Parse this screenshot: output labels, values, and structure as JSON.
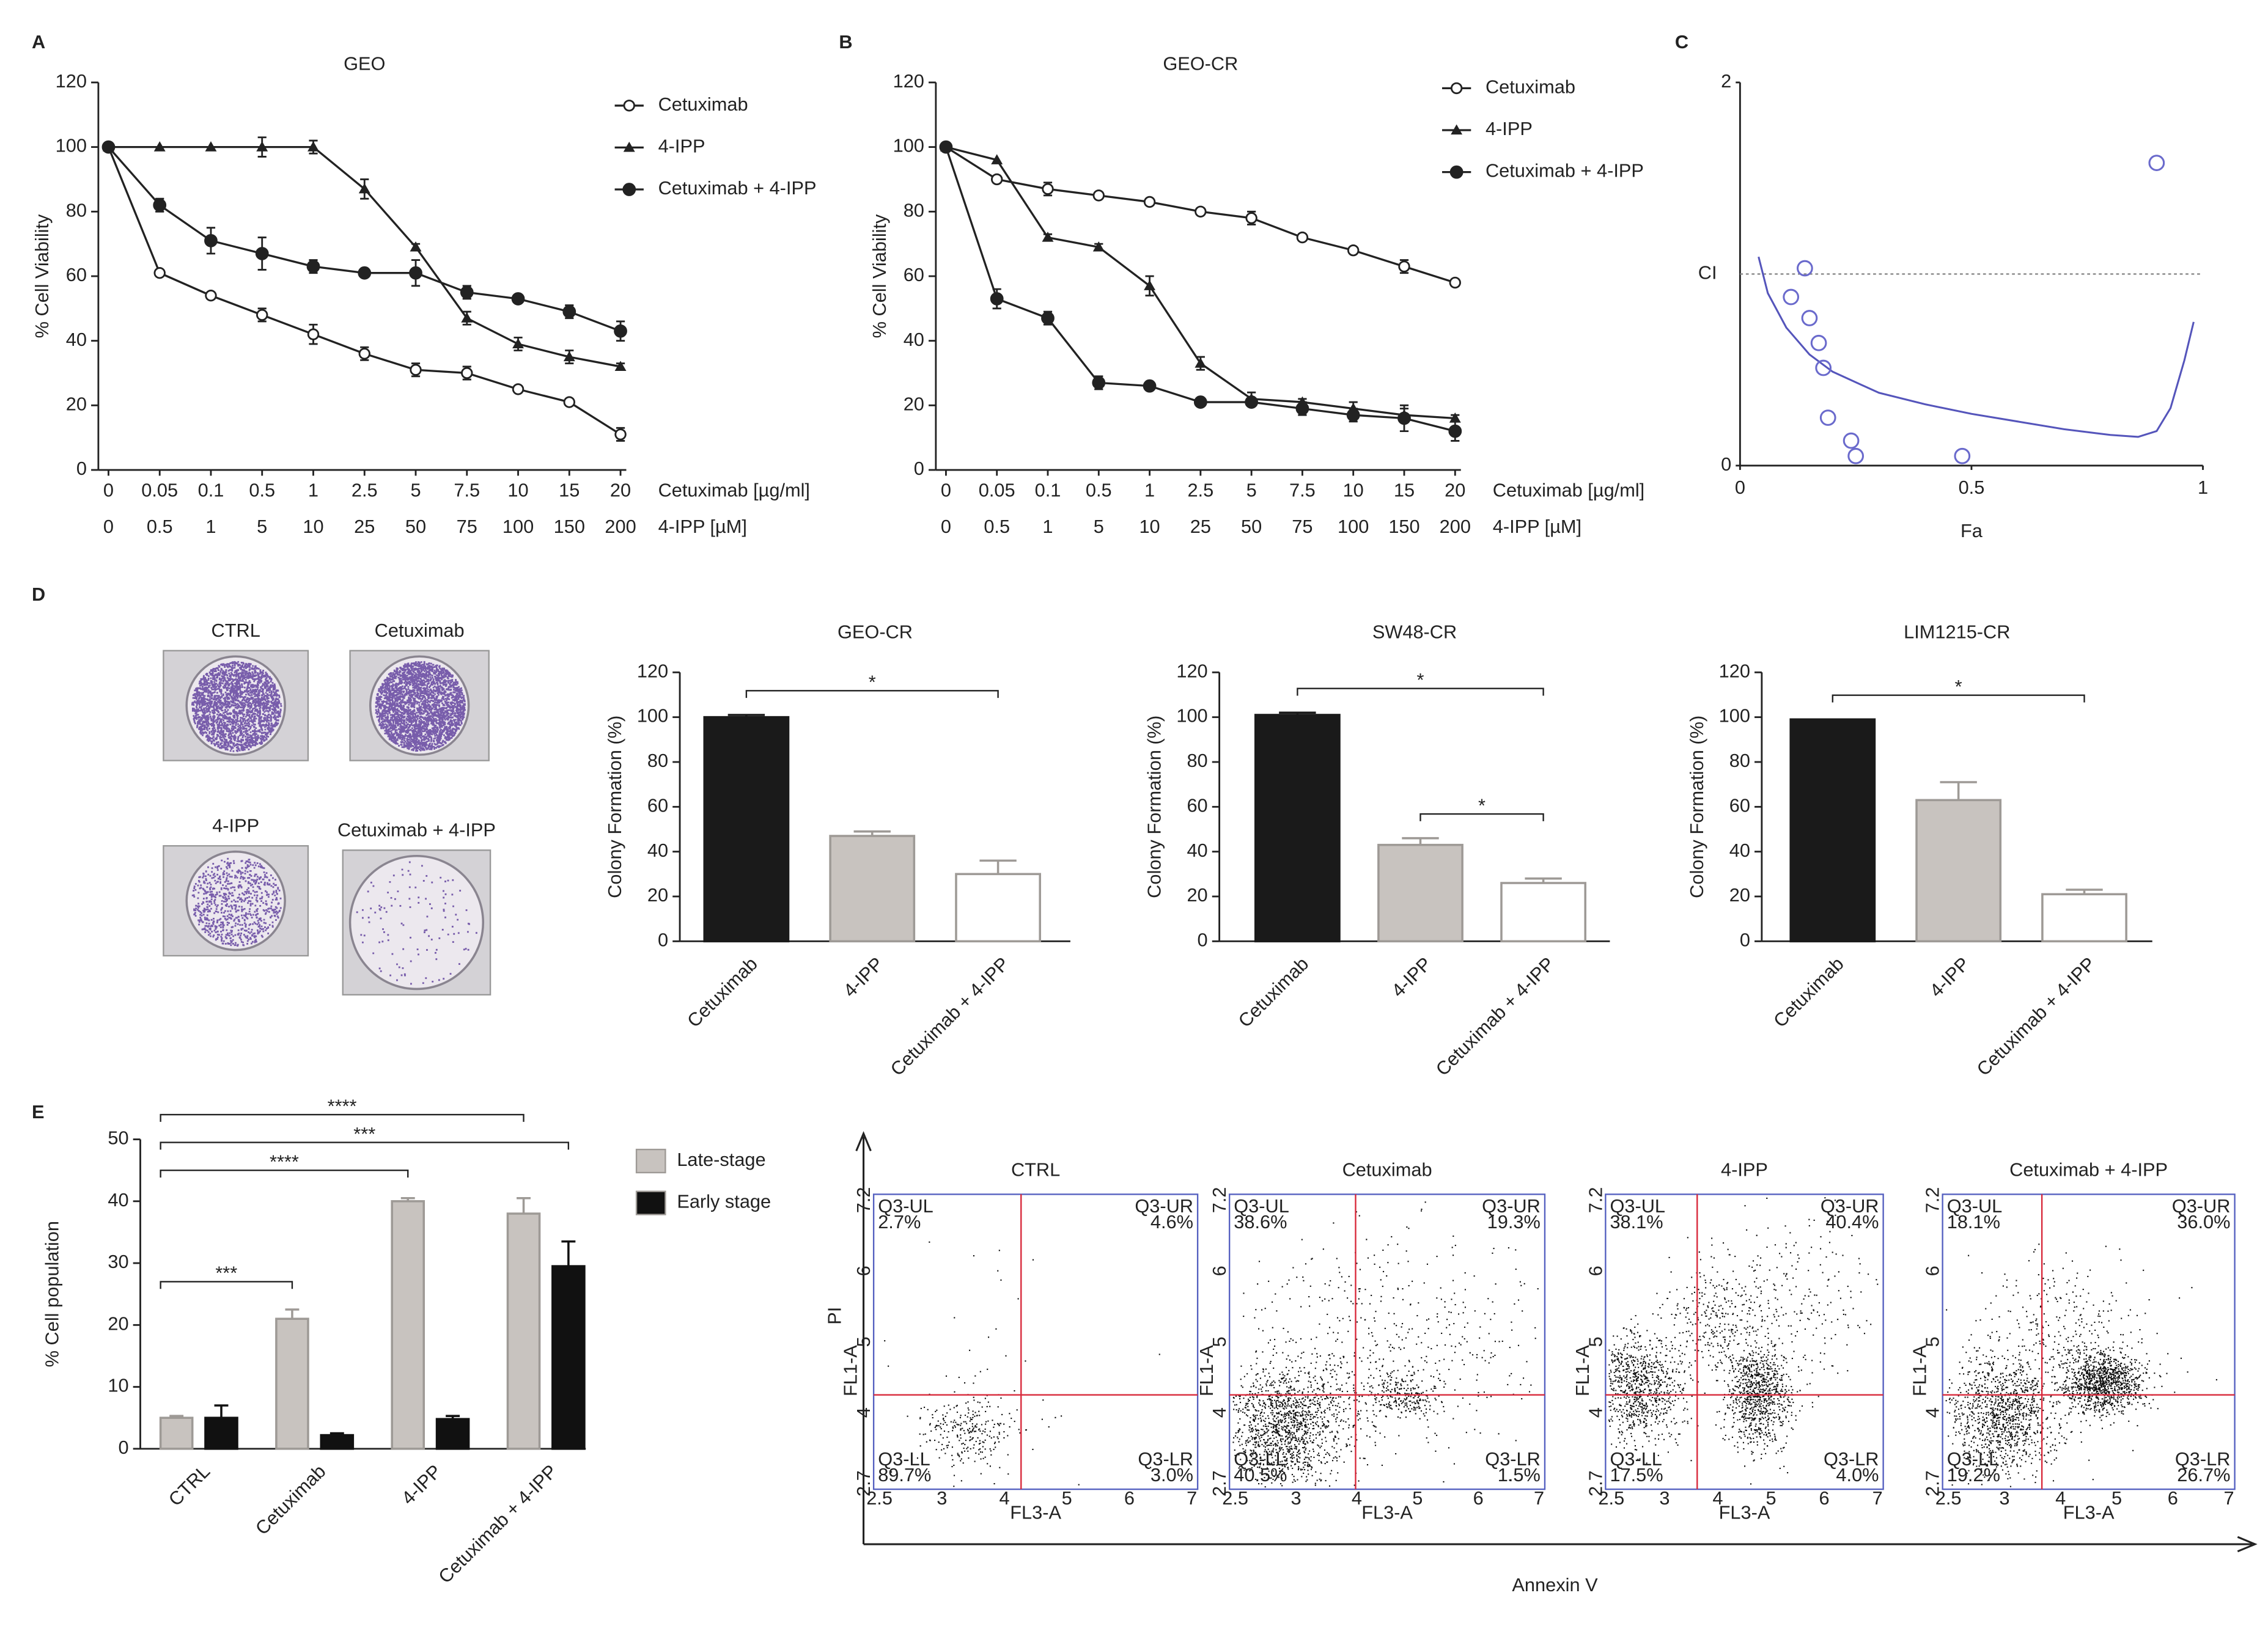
{
  "panel_labels": [
    "A",
    "B",
    "C",
    "D",
    "E"
  ],
  "chart_data": [
    {
      "type": "line",
      "title": "GEO",
      "categories": [
        "0",
        "0.05",
        "0.1",
        "0.5",
        "1",
        "2.5",
        "5",
        "7.5",
        "10",
        "15",
        "20"
      ],
      "categories2": [
        "0",
        "0.5",
        "1",
        "5",
        "10",
        "25",
        "50",
        "75",
        "100",
        "150",
        "200"
      ],
      "xlabel": "Cetuximab [µg/ml]",
      "xlabel2": "4-IPP [µM]",
      "ylabel": "% Cell Viability",
      "ylim": [
        0,
        120
      ],
      "yticks": [
        0,
        20,
        40,
        60,
        80,
        100,
        120
      ],
      "legend": "upper right",
      "series": [
        {
          "name": "Cetuximab",
          "color": "#222",
          "marker": "open-circle",
          "values": [
            100,
            61,
            54,
            48,
            42,
            36,
            31,
            30,
            25,
            21,
            11
          ],
          "errors": [
            0,
            1,
            1,
            2,
            3,
            2,
            2,
            2,
            1,
            1,
            2
          ]
        },
        {
          "name": "4-IPP",
          "color": "#222",
          "marker": "triangle",
          "values": [
            100,
            100,
            100,
            100,
            100,
            87,
            69,
            47,
            39,
            35,
            32
          ],
          "errors": [
            0,
            0,
            0,
            3,
            2,
            3,
            1,
            2,
            2,
            2,
            1
          ]
        },
        {
          "name": "Cetuximab + 4-IPP",
          "color": "#222",
          "marker": "circle",
          "values": [
            100,
            82,
            71,
            67,
            63,
            61,
            61,
            55,
            53,
            49,
            43
          ],
          "errors": [
            0,
            2,
            4,
            5,
            2,
            1,
            4,
            2,
            1,
            2,
            3
          ]
        }
      ]
    },
    {
      "type": "line",
      "title": "GEO-CR",
      "categories": [
        "0",
        "0.05",
        "0.1",
        "0.5",
        "1",
        "2.5",
        "5",
        "7.5",
        "10",
        "15",
        "20"
      ],
      "categories2": [
        "0",
        "0.5",
        "1",
        "5",
        "10",
        "25",
        "50",
        "75",
        "100",
        "150",
        "200"
      ],
      "xlabel": "Cetuximab [µg/ml]",
      "xlabel2": "4-IPP [µM]",
      "ylabel": "% Cell Viability",
      "ylim": [
        0,
        120
      ],
      "yticks": [
        0,
        20,
        40,
        60,
        80,
        100,
        120
      ],
      "legend": "upper right",
      "series": [
        {
          "name": "Cetuximab",
          "color": "#222",
          "marker": "open-circle",
          "values": [
            100,
            90,
            87,
            85,
            83,
            80,
            78,
            72,
            68,
            63,
            58
          ],
          "errors": [
            0,
            1,
            2,
            1,
            1,
            1,
            2,
            1,
            1,
            2,
            1
          ]
        },
        {
          "name": "4-IPP",
          "color": "#222",
          "marker": "triangle",
          "values": [
            100,
            96,
            72,
            69,
            57,
            33,
            22,
            21,
            19,
            17,
            16
          ],
          "errors": [
            0,
            0,
            1,
            1,
            3,
            2,
            2,
            1,
            2,
            2,
            1
          ]
        },
        {
          "name": "Cetuximab + 4-IPP",
          "color": "#222",
          "marker": "circle",
          "values": [
            100,
            53,
            47,
            27,
            26,
            21,
            21,
            19,
            17,
            16,
            12
          ],
          "errors": [
            0,
            3,
            2,
            2,
            1,
            1,
            1,
            2,
            2,
            4,
            3
          ]
        }
      ]
    },
    {
      "type": "scatter",
      "xlabel": "Fa",
      "ylabel": "CI",
      "xlim": [
        0,
        1
      ],
      "ylim": [
        0,
        2
      ],
      "xticks": [
        0,
        0.5,
        1
      ],
      "yticks": [
        0,
        2
      ],
      "hline": 1,
      "points": {
        "color": "#6a6acc",
        "x": [
          0.14,
          0.11,
          0.15,
          0.17,
          0.18,
          0.19,
          0.24,
          0.25,
          0.48,
          0.9
        ],
        "y": [
          1.03,
          0.88,
          0.77,
          0.64,
          0.51,
          0.25,
          0.13,
          0.05,
          0.05,
          1.58
        ]
      },
      "fit": {
        "color": "#5555bb",
        "x": [
          0.04,
          0.06,
          0.1,
          0.15,
          0.2,
          0.3,
          0.4,
          0.5,
          0.6,
          0.7,
          0.8,
          0.86,
          0.9,
          0.93,
          0.96,
          0.98
        ],
        "y": [
          1.09,
          0.9,
          0.72,
          0.58,
          0.49,
          0.38,
          0.32,
          0.27,
          0.23,
          0.19,
          0.16,
          0.15,
          0.18,
          0.3,
          0.55,
          0.75
        ]
      }
    },
    {
      "type": "bar",
      "title": "GEO-CR",
      "ylabel": "Colony Formation (%)",
      "categories": [
        "Cetuximab",
        "4-IPP",
        "Cetuximab + 4-IPP"
      ],
      "values": [
        100,
        47,
        30
      ],
      "errors": [
        1,
        2,
        6
      ],
      "colors": [
        "#1a1a1a",
        "#c8c3bf",
        "#ffffff"
      ],
      "ylim": [
        0,
        120
      ],
      "yticks": [
        0,
        20,
        40,
        60,
        80,
        100,
        120
      ],
      "significance": [
        {
          "from": "Cetuximab",
          "to": "Cetuximab + 4-IPP",
          "label": "*"
        }
      ]
    },
    {
      "type": "bar",
      "title": "SW48-CR",
      "ylabel": "Colony Formation (%)",
      "categories": [
        "Cetuximab",
        "4-IPP",
        "Cetuximab + 4-IPP"
      ],
      "values": [
        101,
        43,
        26
      ],
      "errors": [
        1,
        3,
        2
      ],
      "colors": [
        "#1a1a1a",
        "#c8c3bf",
        "#ffffff"
      ],
      "ylim": [
        0,
        120
      ],
      "yticks": [
        0,
        20,
        40,
        60,
        80,
        100,
        120
      ],
      "significance": [
        {
          "from": "4-IPP",
          "to": "Cetuximab + 4-IPP",
          "label": "*"
        },
        {
          "from": "Cetuximab",
          "to": "Cetuximab + 4-IPP",
          "label": "*"
        }
      ]
    },
    {
      "type": "bar",
      "title": "LIM1215-CR",
      "ylabel": "Colony Formation (%)",
      "categories": [
        "Cetuximab",
        "4-IPP",
        "Cetuximab + 4-IPP"
      ],
      "values": [
        99,
        63,
        21
      ],
      "errors": [
        0,
        8,
        2
      ],
      "colors": [
        "#1a1a1a",
        "#c8c3bf",
        "#ffffff"
      ],
      "ylim": [
        0,
        120
      ],
      "yticks": [
        0,
        20,
        40,
        60,
        80,
        100,
        120
      ],
      "significance": [
        {
          "from": "Cetuximab",
          "to": "Cetuximab + 4-IPP",
          "label": "*"
        }
      ]
    },
    {
      "type": "bar",
      "ylabel": "% Cell population",
      "categories": [
        "CTRL",
        "Cetuximab",
        "4-IPP",
        "Cetuximab + 4-IPP"
      ],
      "ylim": [
        0,
        50
      ],
      "yticks": [
        0,
        10,
        20,
        30,
        40,
        50
      ],
      "legend": "right",
      "series": [
        {
          "name": "Late-stage",
          "color": "#c8c3bf",
          "values": [
            5,
            21,
            40,
            38
          ],
          "errors": [
            0.3,
            1.5,
            0.5,
            2.5
          ]
        },
        {
          "name": "Early stage",
          "color": "#111111",
          "values": [
            5,
            2.2,
            4.8,
            29.5
          ],
          "errors": [
            2,
            0.3,
            0.5,
            4
          ]
        }
      ],
      "significance": [
        {
          "from": "CTRL",
          "to": "Cetuximab",
          "series": "Late-stage",
          "label": "***"
        },
        {
          "from": "CTRL",
          "to": "4-IPP",
          "series": "Late-stage",
          "label": "****"
        },
        {
          "from": "CTRL",
          "to": "Cetuximab + 4-IPP",
          "series": "Early stage",
          "label": "***"
        },
        {
          "from": "CTRL",
          "to": "Cetuximab + 4-IPP",
          "series": "Late-stage",
          "label": "****"
        }
      ]
    }
  ],
  "colony_wells": [
    "CTRL",
    "Cetuximab",
    "4-IPP",
    "Cetuximab + 4-IPP"
  ],
  "flow": {
    "y_title": "PI",
    "x_title": "Annexin V",
    "y_channel": "FL1-A",
    "x_channel": "FL3-A",
    "x_ticks": [
      "2.5",
      "3",
      "4",
      "5",
      "6",
      "7"
    ],
    "y_ticks": [
      "2.7",
      "4",
      "5",
      "6",
      "7.2"
    ],
    "panels": [
      {
        "title": "CTRL",
        "quadrants": [
          [
            "Q3-UL",
            "2.7%"
          ],
          [
            "Q3-UR",
            "4.6%"
          ],
          [
            "Q3-LL",
            "89.7%"
          ],
          [
            "Q3-LR",
            "3.0%"
          ]
        ]
      },
      {
        "title": "Cetuximab",
        "quadrants": [
          [
            "Q3-UL",
            "38.6%"
          ],
          [
            "Q3-UR",
            "19.3%"
          ],
          [
            "Q3-LL",
            "40.5%"
          ],
          [
            "Q3-LR",
            "1.5%"
          ]
        ]
      },
      {
        "title": "4-IPP",
        "quadrants": [
          [
            "Q3-UL",
            "38.1%"
          ],
          [
            "Q3-UR",
            "40.4%"
          ],
          [
            "Q3-LL",
            "17.5%"
          ],
          [
            "Q3-LR",
            "4.0%"
          ]
        ]
      },
      {
        "title": "Cetuximab + 4-IPP",
        "quadrants": [
          [
            "Q3-UL",
            "18.1%"
          ],
          [
            "Q3-UR",
            "36.0%"
          ],
          [
            "Q3-LL",
            "19.2%"
          ],
          [
            "Q3-LR",
            "26.7%"
          ]
        ]
      }
    ]
  }
}
